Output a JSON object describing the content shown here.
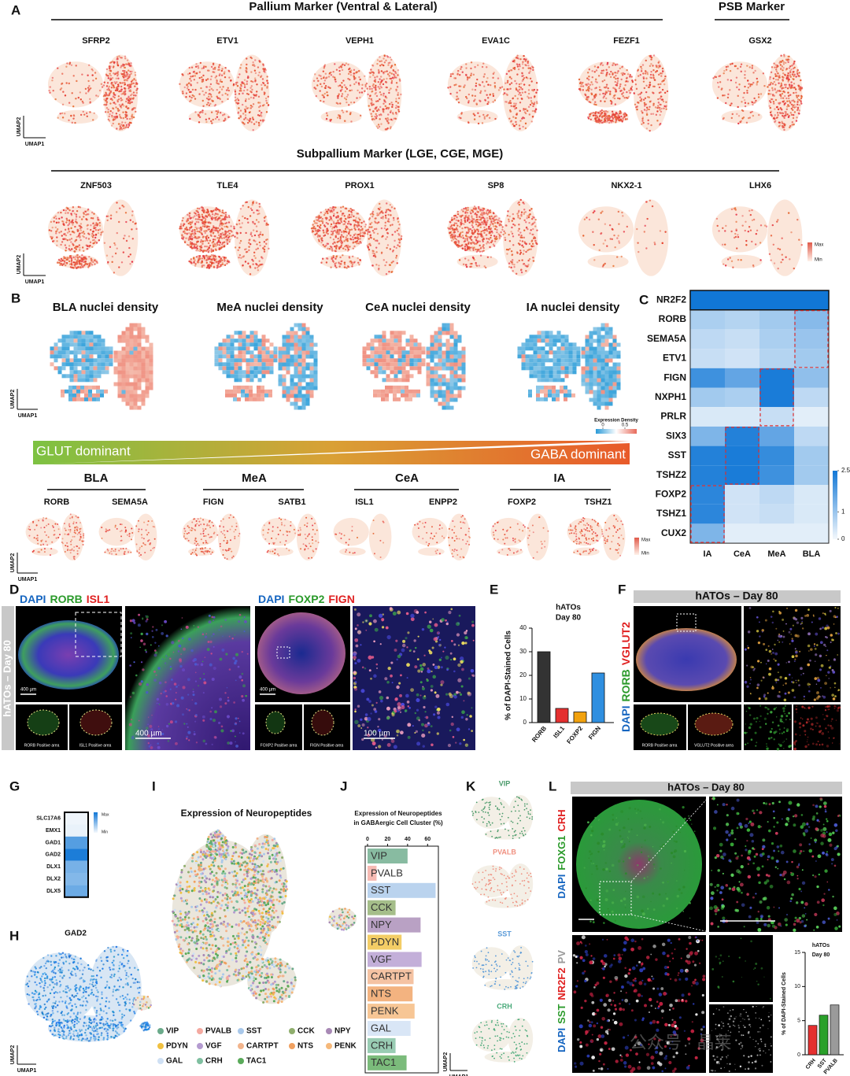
{
  "panel_labels": [
    "A",
    "B",
    "C",
    "D",
    "E",
    "F",
    "G",
    "H",
    "I",
    "J",
    "K",
    "L"
  ],
  "panel_a": {
    "pallium_title": "Pallium Marker (Ventral & Lateral)",
    "psb_title": "PSB Marker",
    "row1_genes": [
      "SFRP2",
      "ETV1",
      "VEPH1",
      "EVA1C",
      "FEZF1",
      "GSX2"
    ],
    "subpallium_title": "Subpallium Marker (LGE, CGE, MGE)",
    "row2_genes": [
      "ZNF503",
      "TLE4",
      "PROX1",
      "SP8",
      "NKX2-1",
      "LHX6"
    ],
    "umap1": "UMAP1",
    "umap2": "UMAP2",
    "max": "Max",
    "min": "Min"
  },
  "panel_b": {
    "density_titles": [
      "BLA nuclei density",
      "MeA nuclei density",
      "CeA nuclei density",
      "IA nuclei density"
    ],
    "expression_density": "Expression Density",
    "scale_ticks": [
      0,
      0.5
    ],
    "glut": "GLUT  dominant",
    "gaba": "GABA  dominant",
    "groups": [
      {
        "name": "BLA",
        "genes": [
          "RORB",
          "SEMA5A"
        ]
      },
      {
        "name": "MeA",
        "genes": [
          "FIGN",
          "SATB1"
        ]
      },
      {
        "name": "CeA",
        "genes": [
          "ISL1",
          "ENPP2"
        ]
      },
      {
        "name": "IA",
        "genes": [
          "FOXP2",
          "TSHZ1"
        ]
      }
    ],
    "max": "Max",
    "min": "Min"
  },
  "panel_c": {
    "type": "heatmap",
    "rows": [
      "NR2F2",
      "RORB",
      "SEMA5A",
      "ETV1",
      "FIGN",
      "NXPH1",
      "PRLR",
      "SIX3",
      "SST",
      "TSHZ2",
      "FOXP2",
      "TSHZ1",
      "CUX2"
    ],
    "columns": [
      "IA",
      "CeA",
      "MeA",
      "BLA"
    ],
    "values": [
      [
        2.5,
        2.5,
        2.5,
        2.5
      ],
      [
        0.8,
        0.7,
        0.9,
        1.2
      ],
      [
        0.6,
        0.5,
        0.8,
        1.0
      ],
      [
        0.5,
        0.4,
        0.7,
        0.9
      ],
      [
        2.0,
        1.6,
        2.4,
        1.1
      ],
      [
        0.9,
        0.8,
        2.4,
        0.6
      ],
      [
        0.3,
        0.3,
        0.5,
        0.2
      ],
      [
        1.3,
        2.3,
        1.6,
        0.6
      ],
      [
        2.3,
        2.4,
        2.1,
        0.9
      ],
      [
        2.3,
        2.4,
        2.0,
        0.9
      ],
      [
        2.2,
        0.4,
        0.6,
        0.3
      ],
      [
        2.2,
        0.4,
        0.5,
        0.3
      ],
      [
        1.3,
        0.2,
        0.2,
        0.2
      ]
    ],
    "vlim": [
      0,
      2.5
    ],
    "colorbar_ticks": [
      0,
      1,
      2.5
    ]
  },
  "panel_d": {
    "left_stains": {
      "names": [
        "DAPI",
        "RORB",
        "ISL1"
      ],
      "colors": [
        "#1565c0",
        "#2a9a2a",
        "#e02020"
      ]
    },
    "right_stains": {
      "names": [
        "DAPI",
        "FOXP2",
        "FIGN"
      ],
      "colors": [
        "#1565c0",
        "#2a9a2a",
        "#e02020"
      ]
    },
    "side_label": "hATOs – Day 80",
    "scale_labels": [
      "400 µm",
      "400 µm",
      "400 µm",
      "100 µm"
    ],
    "captions": [
      "RORB Positive area",
      "ISL1 Positive area",
      "FOXP2 Positive area",
      "FIGN Positive area"
    ]
  },
  "panel_e": {
    "type": "bar",
    "title": [
      "hATOs",
      "Day 80"
    ],
    "y_label": "% of DAPI-Stained Cells",
    "categories": [
      "RORB",
      "ISL1",
      "FOXP2",
      "FIGN"
    ],
    "values": [
      30,
      6,
      4.5,
      21
    ],
    "colors": [
      "#333333",
      "#e53030",
      "#f2a20e",
      "#2f8fe0"
    ],
    "ylim": [
      0,
      40
    ],
    "yticks": [
      0,
      10,
      20,
      30,
      40
    ]
  },
  "panel_f": {
    "header": "hATOs – Day 80",
    "side_stains": {
      "names": [
        "DAPI",
        "RORB",
        "VGLUT2"
      ],
      "colors": [
        "#1565c0",
        "#2a9a2a",
        "#e02020"
      ]
    },
    "captions": [
      "RORB Positive area",
      "VGLUT2 Positive area"
    ]
  },
  "panel_g": {
    "type": "heatmap",
    "rows": [
      "SLC17A6",
      "EMX1",
      "GAD1",
      "GAD2",
      "DLX1",
      "DLX2",
      "DLX5"
    ],
    "values": [
      0.02,
      0.05,
      0.7,
      0.95,
      0.55,
      0.5,
      0.6
    ],
    "max": "Max",
    "min": "Min"
  },
  "panel_h": {
    "title": "GAD2",
    "umap1": "UMAP1",
    "umap2": "UMAP2"
  },
  "panel_i": {
    "title": "Expression of Neuropeptides",
    "legend": [
      {
        "name": "VIP",
        "color": "#6aaa8a"
      },
      {
        "name": "PVALB",
        "color": "#f4a9a0"
      },
      {
        "name": "SST",
        "color": "#a9c8ea"
      },
      {
        "name": "CCK",
        "color": "#8fae6d"
      },
      {
        "name": "NPY",
        "color": "#a889b5"
      },
      {
        "name": "PDYN",
        "color": "#f0c040"
      },
      {
        "name": "VGF",
        "color": "#b49bd0"
      },
      {
        "name": "CARTPT",
        "color": "#f2b48c"
      },
      {
        "name": "NTS",
        "color": "#f0a060"
      },
      {
        "name": "PENK",
        "color": "#f5b87a"
      },
      {
        "name": "GAL",
        "color": "#cfe0f4"
      },
      {
        "name": "CRH",
        "color": "#7fbfa0"
      },
      {
        "name": "TAC1",
        "color": "#5aaa5a"
      }
    ]
  },
  "panel_j": {
    "type": "bar",
    "title": [
      "Expression of Neuropeptides",
      "in GABAergic Cell Cluster (%)"
    ],
    "categories": [
      "VIP",
      "PVALB",
      "SST",
      "CCK",
      "NPY",
      "PDYN",
      "VGF",
      "CARTPT",
      "NTS",
      "PENK",
      "GAL",
      "CRH",
      "TAC1"
    ],
    "values": [
      40,
      9,
      68,
      28,
      53,
      34,
      54,
      46,
      45,
      47,
      43,
      28,
      39
    ],
    "xlim": [
      0,
      70
    ],
    "xticks": [
      0,
      20,
      40,
      60
    ]
  },
  "panel_k": {
    "labels": [
      {
        "name": "VIP",
        "color": "#4a9a6a"
      },
      {
        "name": "PVALB",
        "color": "#f09080"
      },
      {
        "name": "SST",
        "color": "#5a9ad8"
      },
      {
        "name": "CRH",
        "color": "#4aaa7a"
      }
    ],
    "umap1": "UMAP1",
    "umap2": "UMAP2"
  },
  "panel_l": {
    "header": "hATOs – Day 80",
    "top_stains": {
      "names": [
        "DAPI",
        "FOXG1",
        "CRH"
      ],
      "colors": [
        "#1565c0",
        "#2a9a2a",
        "#e02020"
      ]
    },
    "bottom_stains": {
      "names": [
        "DAPI",
        "SST",
        "NR2F2",
        "PV"
      ],
      "colors": [
        "#1565c0",
        "#2a9a2a",
        "#e02020",
        "#9a9a9a"
      ]
    },
    "chart": {
      "type": "bar",
      "title": [
        "hATOs",
        "Day 80"
      ],
      "y_label": "% of DAPI-Stained Cells",
      "categories": [
        "CRH",
        "SST",
        "PVALB"
      ],
      "values": [
        4.3,
        5.8,
        7.3
      ],
      "colors": [
        "#e53030",
        "#2aa02a",
        "#9a9a9a"
      ],
      "ylim": [
        0,
        15
      ],
      "yticks": [
        0,
        5,
        10,
        15
      ]
    }
  },
  "watermark": "公众号 · 晶莱"
}
